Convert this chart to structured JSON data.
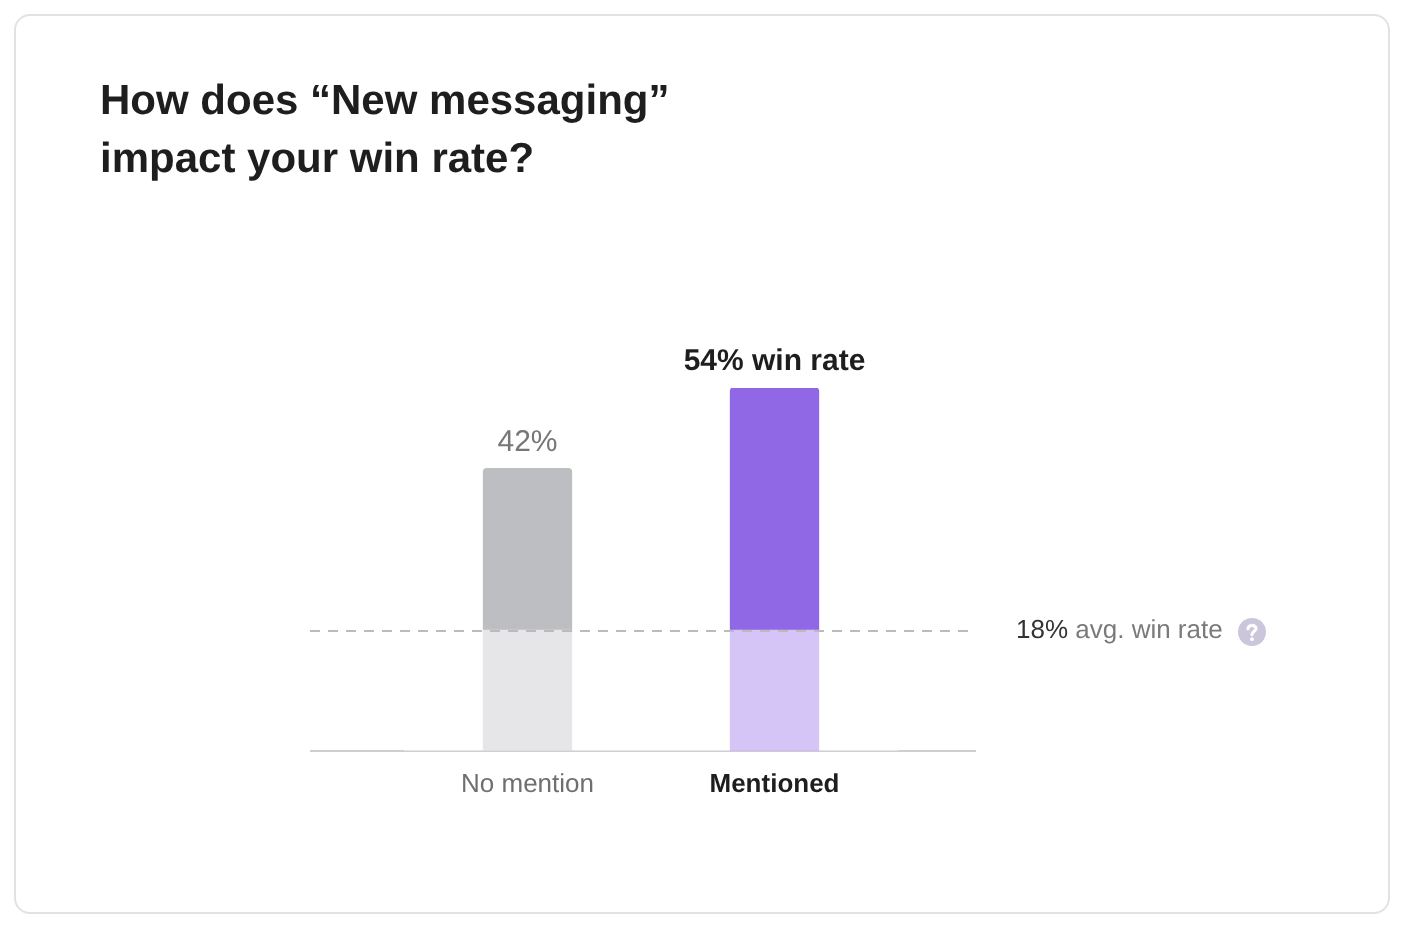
{
  "chart_data": {
    "type": "bar",
    "title": "How does “New messaging” impact your win rate?",
    "categories": [
      "No mention",
      "Mentioned"
    ],
    "series": [
      {
        "values": [
          42,
          54
        ],
        "colors": [
          "#bdbec2",
          "#9068e6"
        ],
        "value_labels": [
          "42%",
          "54% win rate"
        ]
      }
    ],
    "bands": [
      {
        "axis": "y",
        "from": 0,
        "to": 18,
        "color": "#ffffff"
      }
    ],
    "ref_lines": [
      {
        "axis": "y",
        "value": 18,
        "label": "18% avg. win rate",
        "color": "#bbbbbb",
        "line_style": "dashed"
      }
    ],
    "tick_labels": "x",
    "grid": false,
    "legend": false
  }
}
